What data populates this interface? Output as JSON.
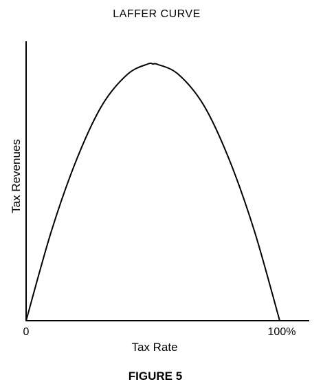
{
  "chart_data": {
    "type": "line",
    "title": "LAFFER CURVE",
    "xlabel": "Tax Rate",
    "ylabel": "Tax Revenues",
    "x_tick_labels": [
      "0",
      "100%"
    ],
    "xlim": [
      0,
      100
    ],
    "ylim": [
      0,
      1.2
    ],
    "grid": false,
    "legend": "none",
    "series": [
      {
        "x": [
          0,
          10,
          20,
          30,
          40,
          48,
          50,
          52,
          60,
          70,
          80,
          90,
          100
        ],
        "y": [
          0,
          0.35,
          0.63,
          0.84,
          0.96,
          1.0,
          1.0,
          0.998,
          0.96,
          0.84,
          0.63,
          0.35,
          0
        ],
        "color": "#000000"
      }
    ]
  },
  "figure": {
    "caption": "FIGURE 5"
  }
}
